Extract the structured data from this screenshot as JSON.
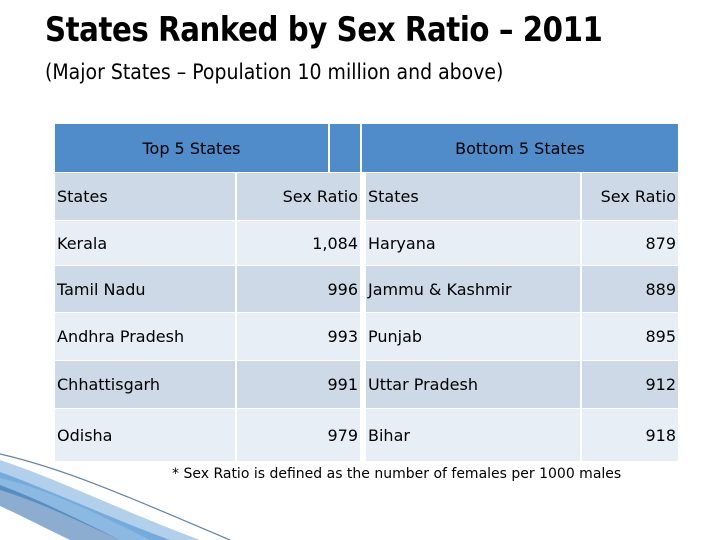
{
  "title": "States Ranked by Sex Ratio – 2011",
  "subtitle": "(Major States – Population 10 million and above)",
  "group_headers": {
    "top": "Top 5 States",
    "bottom": "Bottom 5 States"
  },
  "columns": {
    "top_states": "States",
    "top_ratio": "Sex Ratio",
    "bottom_states": "States",
    "bottom_ratio": "Sex Ratio"
  },
  "rows": [
    {
      "top_state": "Kerala",
      "top_ratio": "1,084",
      "bottom_state": "Haryana",
      "bottom_ratio": "879"
    },
    {
      "top_state": "Tamil Nadu",
      "top_ratio": "996",
      "bottom_state": "Jammu & Kashmir",
      "bottom_ratio": "889"
    },
    {
      "top_state": "Andhra Pradesh",
      "top_ratio": "993",
      "bottom_state": "Punjab",
      "bottom_ratio": "895"
    },
    {
      "top_state": "Chhattisgarh",
      "top_ratio": "991",
      "bottom_state": "Uttar Pradesh",
      "bottom_ratio": "912"
    },
    {
      "top_state": "Odisha",
      "top_ratio": "979",
      "bottom_state": "Bihar",
      "bottom_ratio": "918"
    }
  ],
  "footnote": "* Sex Ratio is defined as the number of females per 1000 males",
  "colors": {
    "header": "#4f8cc9",
    "row_dark": "#cdd9e6",
    "row_light": "#e8eef5"
  }
}
